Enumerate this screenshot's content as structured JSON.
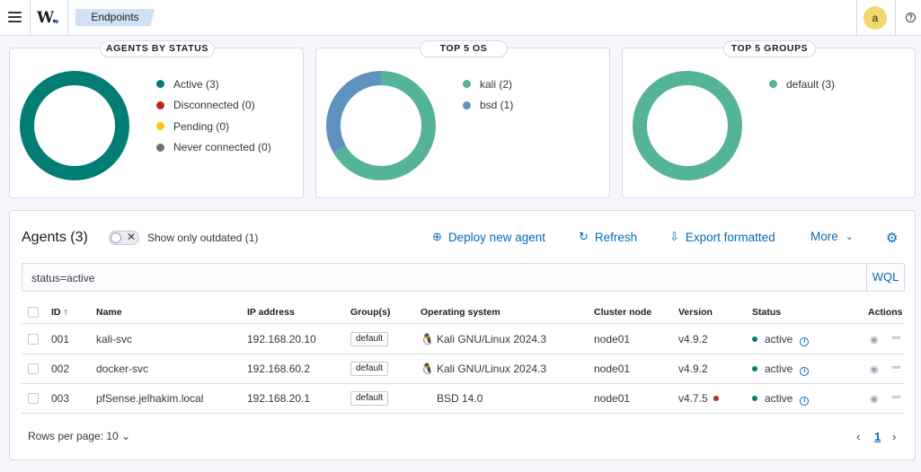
{
  "header": {
    "breadcrumb": "Endpoints",
    "avatar_initial": "a",
    "help_glyph": "?",
    "logo_text": "W."
  },
  "cards": {
    "agents_by_status": {
      "title": "AGENTS BY STATUS",
      "legend": [
        {
          "label": "Active (3)",
          "color": "#017d73"
        },
        {
          "label": "Disconnected (0)",
          "color": "#bd271e"
        },
        {
          "label": "Pending (0)",
          "color": "#fec514"
        },
        {
          "label": "Never connected (0)",
          "color": "#69707d"
        }
      ]
    },
    "top_os": {
      "title": "TOP 5 OS",
      "legend": [
        {
          "label": "kali (2)",
          "color": "#54b399"
        },
        {
          "label": "bsd (1)",
          "color": "#6092c0"
        }
      ]
    },
    "top_groups": {
      "title": "TOP 5 GROUPS",
      "legend": [
        {
          "label": "default (3)",
          "color": "#54b399"
        }
      ]
    }
  },
  "chart_data": [
    {
      "type": "pie",
      "title": "AGENTS BY STATUS",
      "categories": [
        "Active",
        "Disconnected",
        "Pending",
        "Never connected"
      ],
      "values": [
        3,
        0,
        0,
        0
      ],
      "colors": [
        "#017d73",
        "#bd271e",
        "#fec514",
        "#69707d"
      ]
    },
    {
      "type": "pie",
      "title": "TOP 5 OS",
      "categories": [
        "kali",
        "bsd"
      ],
      "values": [
        2,
        1
      ],
      "colors": [
        "#54b399",
        "#6092c0"
      ]
    },
    {
      "type": "pie",
      "title": "TOP 5 GROUPS",
      "categories": [
        "default"
      ],
      "values": [
        3
      ],
      "colors": [
        "#54b399"
      ]
    }
  ],
  "agents": {
    "title": "Agents (3)",
    "outdated_label": "Show only outdated (1)",
    "actions": {
      "deploy": "Deploy new agent",
      "refresh": "Refresh",
      "export": "Export formatted",
      "more": "More"
    },
    "search_value": "status=active",
    "query_language": "WQL",
    "columns": [
      "ID",
      "Name",
      "IP address",
      "Group(s)",
      "Operating system",
      "Cluster node",
      "Version",
      "Status",
      "Actions"
    ],
    "rows": [
      {
        "id": "001",
        "name": "kali-svc",
        "ip": "192.168.20.10",
        "group": "default",
        "os": "Kali GNU/Linux 2024.3",
        "node": "node01",
        "version": "v4.9.2",
        "outdated": false,
        "status": "active"
      },
      {
        "id": "002",
        "name": "docker-svc",
        "ip": "192.168.60.2",
        "group": "default",
        "os": "Kali GNU/Linux 2024.3",
        "node": "node01",
        "version": "v4.9.2",
        "outdated": false,
        "status": "active"
      },
      {
        "id": "003",
        "name": "pfSense.jelhakim.local",
        "ip": "192.168.20.1",
        "group": "default",
        "os": "BSD 14.0",
        "node": "node01",
        "version": "v4.7.5",
        "outdated": true,
        "status": "active"
      }
    ],
    "rows_per_page": "Rows per page: 10",
    "current_page": "1"
  },
  "icons": {
    "menu": "hamburger-icon",
    "sort": "arrow-up-icon",
    "linux": "tux-icon",
    "info": "info-icon",
    "view": "eye-icon",
    "more": "dots-icon",
    "settings": "gear-icon"
  }
}
